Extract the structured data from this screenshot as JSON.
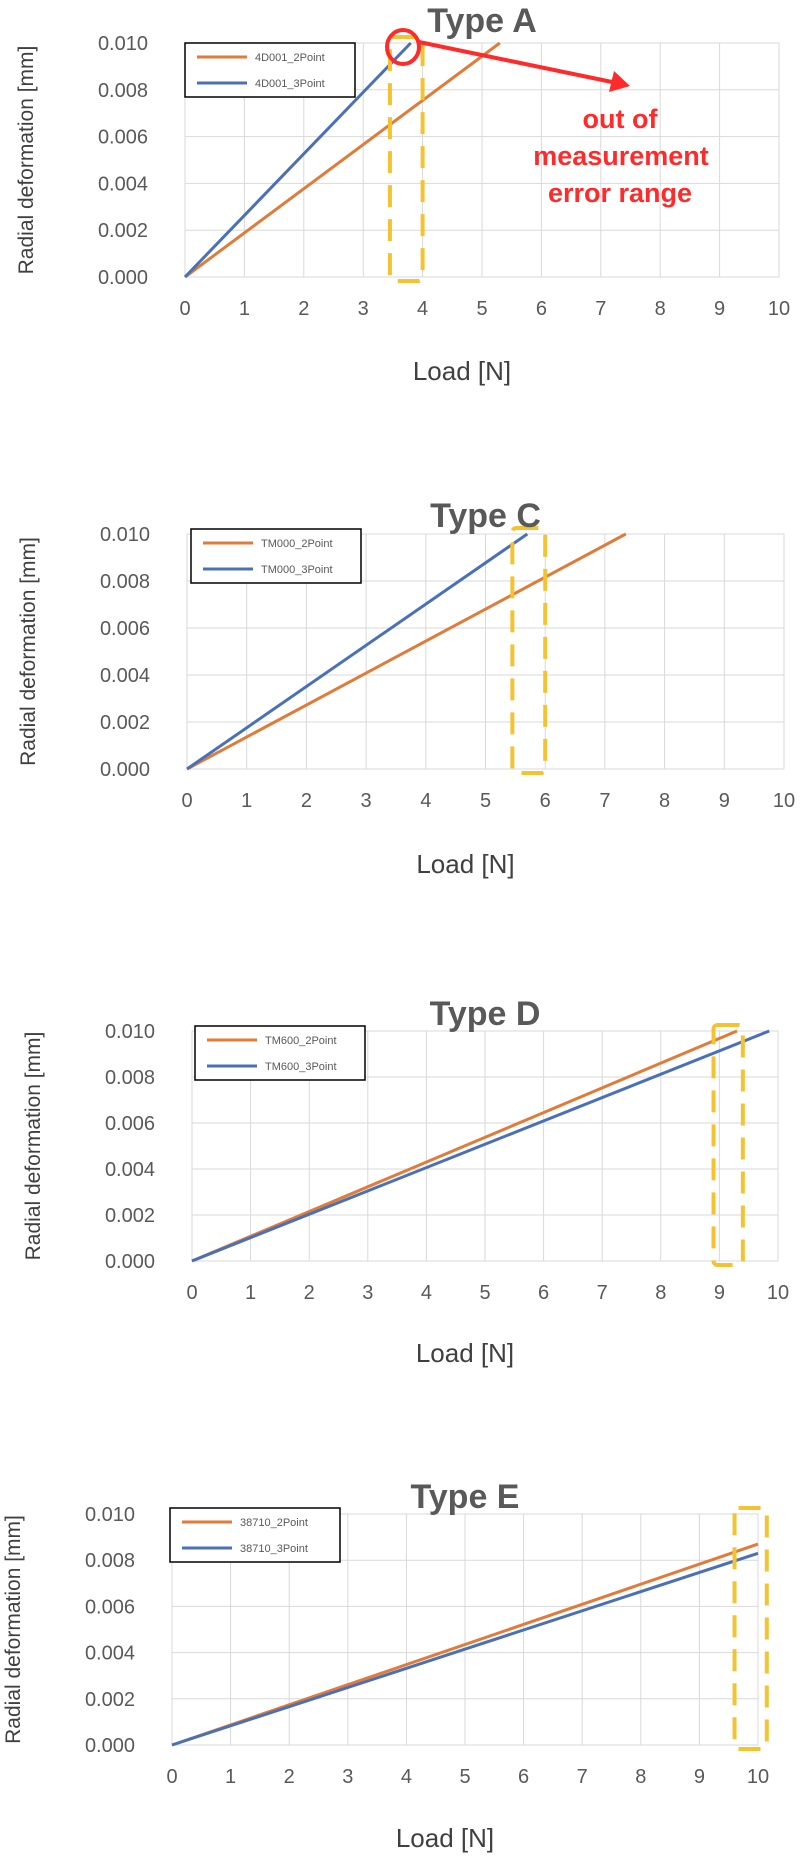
{
  "colors": {
    "series_2point": "#e07b39",
    "series_3point": "#4a70b8",
    "highlight": "#f5c230",
    "annotation": "#ff2a2a",
    "grid": "#d9d9d9"
  },
  "annotation": {
    "lines": [
      "out of",
      "measurement",
      "error range"
    ]
  },
  "chart_data": [
    {
      "type": "line",
      "title": "Type A",
      "xlabel": "Load [N]",
      "ylabel": "Radial deformation [mm]",
      "xlim": [
        0,
        10
      ],
      "ylim": [
        0,
        0.01
      ],
      "x_ticks": [
        "0",
        "1",
        "2",
        "3",
        "4",
        "5",
        "6",
        "7",
        "8",
        "9",
        "10"
      ],
      "y_ticks": [
        "0.000",
        "0.002",
        "0.004",
        "0.006",
        "0.008",
        "0.010"
      ],
      "grid": true,
      "legend": "top-left",
      "series": [
        {
          "name": "4D001_2Point",
          "x": [
            0,
            5.3
          ],
          "y": [
            0,
            0.01
          ]
        },
        {
          "name": "4D001_3Point",
          "x": [
            0,
            3.8
          ],
          "y": [
            0,
            0.01
          ]
        }
      ],
      "highlight_x": [
        3.45,
        4.0
      ]
    },
    {
      "type": "line",
      "title": "Type C",
      "xlabel": "Load [N]",
      "ylabel": "Radial deformation [mm]",
      "xlim": [
        0,
        10
      ],
      "ylim": [
        0,
        0.01
      ],
      "x_ticks": [
        "0",
        "1",
        "2",
        "3",
        "4",
        "5",
        "6",
        "7",
        "8",
        "9",
        "10"
      ],
      "y_ticks": [
        "0.000",
        "0.002",
        "0.004",
        "0.006",
        "0.008",
        "0.010"
      ],
      "grid": true,
      "legend": "top-left",
      "series": [
        {
          "name": "TM000_2Point",
          "x": [
            0,
            7.35
          ],
          "y": [
            0,
            0.01
          ]
        },
        {
          "name": "TM000_3Point",
          "x": [
            0,
            5.7
          ],
          "y": [
            0,
            0.01
          ]
        }
      ],
      "highlight_x": [
        5.45,
        6.0
      ]
    },
    {
      "type": "line",
      "title": "Type D",
      "xlabel": "Load [N]",
      "ylabel": "Radial deformation [mm]",
      "xlim": [
        0,
        10
      ],
      "ylim": [
        0,
        0.01
      ],
      "x_ticks": [
        "0",
        "1",
        "2",
        "3",
        "4",
        "5",
        "6",
        "7",
        "8",
        "9",
        "10"
      ],
      "y_ticks": [
        "0.000",
        "0.002",
        "0.004",
        "0.006",
        "0.008",
        "0.010"
      ],
      "grid": true,
      "legend": "top-left",
      "series": [
        {
          "name": "TM600_2Point",
          "x": [
            0,
            9.3
          ],
          "y": [
            0,
            0.01
          ]
        },
        {
          "name": "TM600_3Point",
          "x": [
            0,
            9.85
          ],
          "y": [
            0,
            0.01
          ]
        }
      ],
      "highlight_x": [
        8.9,
        9.4
      ]
    },
    {
      "type": "line",
      "title": "Type E",
      "xlabel": "Load [N]",
      "ylabel": "Radial deformation [mm]",
      "xlim": [
        0,
        10
      ],
      "ylim": [
        0,
        0.01
      ],
      "x_ticks": [
        "0",
        "1",
        "2",
        "3",
        "4",
        "5",
        "6",
        "7",
        "8",
        "9",
        "10"
      ],
      "y_ticks": [
        "0.000",
        "0.002",
        "0.004",
        "0.006",
        "0.008",
        "0.010"
      ],
      "grid": true,
      "legend": "top-left",
      "series": [
        {
          "name": "38710_2Point",
          "x": [
            0,
            10
          ],
          "y": [
            0,
            0.0087
          ]
        },
        {
          "name": "38710_3Point",
          "x": [
            0,
            10
          ],
          "y": [
            0,
            0.0083
          ]
        }
      ],
      "highlight_x": [
        9.6,
        10.15
      ]
    }
  ]
}
